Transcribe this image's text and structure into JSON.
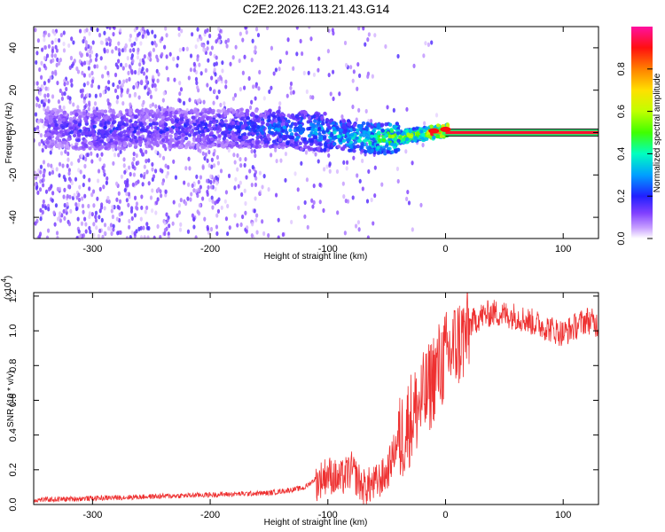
{
  "title": "C2E2.2026.113.21.43.G14",
  "chart_data": [
    {
      "type": "heatmap",
      "title": "C2E2.2026.113.21.43.G14",
      "xlabel": "Height of straight line (km)",
      "ylabel": "Frequency (Hz)",
      "xlim": [
        -350,
        130
      ],
      "ylim": [
        -50,
        50
      ],
      "xticks": [
        -300,
        -200,
        -100,
        0,
        100
      ],
      "yticks": [
        -40,
        -20,
        0,
        20,
        40
      ],
      "xtick_labels": [
        "-300",
        "-200",
        "-100",
        "0",
        "100"
      ],
      "ytick_labels": [
        "-40",
        "-20",
        "0",
        "20",
        "40"
      ],
      "colorbar": {
        "label": "Normalized spectral amplitude",
        "range": [
          0,
          1
        ],
        "ticks": [
          0.0,
          0.2,
          0.4,
          0.6,
          0.8
        ],
        "tick_labels": [
          "0.0",
          "0.2",
          "0.4",
          "0.6",
          "0.8"
        ]
      },
      "ridge": {
        "description_points_x": [
          -340,
          -300,
          -250,
          -200,
          -150,
          -100,
          -75,
          -50,
          -25,
          -10,
          0,
          20,
          60,
          100,
          130
        ],
        "center_frequency": [
          2,
          1,
          2,
          2,
          2,
          0,
          -2,
          -3,
          -1,
          0,
          1,
          0,
          0,
          0,
          0
        ],
        "amplitude": [
          0.15,
          0.2,
          0.18,
          0.2,
          0.25,
          0.35,
          0.4,
          0.5,
          0.6,
          0.9,
          0.95,
          1.0,
          1.0,
          1.0,
          1.0
        ]
      }
    },
    {
      "type": "line",
      "xlabel": "Height of straight line (km)",
      "ylabel": "SNR (10 * v/v)",
      "y_multiplier": "(x10",
      "y_multiplier_exp": "4",
      "y_multiplier_close": ")",
      "xlim": [
        -350,
        130
      ],
      "ylim": [
        0,
        1.22
      ],
      "xticks": [
        -300,
        -200,
        -100,
        0,
        100
      ],
      "yticks": [
        0.0,
        0.2,
        0.4,
        0.6,
        0.8,
        1.0,
        1.2
      ],
      "xtick_labels": [
        "-300",
        "-200",
        "-100",
        "0",
        "100"
      ],
      "ytick_labels": [
        "0.0",
        "0.2",
        "0.4",
        "0.6",
        "0.8",
        "1.0",
        "1.2"
      ],
      "series": [
        {
          "name": "SNR",
          "color": "#ee3030",
          "x": [
            -350,
            -300,
            -250,
            -200,
            -150,
            -120,
            -100,
            -90,
            -80,
            -70,
            -60,
            -50,
            -40,
            -30,
            -20,
            -15,
            -10,
            -5,
            0,
            10,
            20,
            30,
            40,
            60,
            80,
            100,
            120,
            130
          ],
          "y": [
            0.02,
            0.03,
            0.04,
            0.05,
            0.06,
            0.09,
            0.2,
            0.16,
            0.22,
            0.12,
            0.14,
            0.2,
            0.4,
            0.55,
            0.65,
            0.7,
            0.8,
            0.85,
            0.9,
            0.98,
            1.05,
            1.1,
            1.12,
            1.1,
            1.05,
            1.0,
            1.08,
            1.05
          ]
        }
      ]
    }
  ]
}
